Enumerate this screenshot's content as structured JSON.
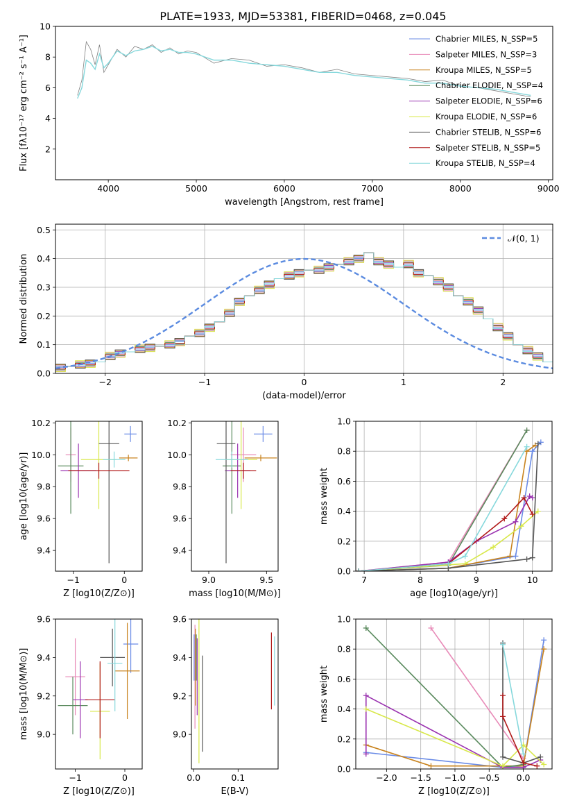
{
  "title": "PLATE=1933, MJD=53381, FIBERID=0468, z=0.045",
  "colors": {
    "series": [
      "#6a8be6",
      "#e88bb8",
      "#c8831e",
      "#5a8a5e",
      "#9a32b0",
      "#d8e84a",
      "#555555",
      "#b01818",
      "#86d8dc"
    ]
  },
  "chart_data": [
    {
      "id": "spectrum",
      "type": "line",
      "xlabel": "wavelength [Angstrom, rest frame]",
      "ylabel": "Flux [fλ10⁻¹⁷ erg cm⁻² s⁻¹ A⁻¹]",
      "xlim": [
        3400,
        9050
      ],
      "ylim": [
        0,
        10
      ],
      "xticks": [
        "4000",
        "5000",
        "6000",
        "7000",
        "8000",
        "9000"
      ],
      "yticks": [
        "2",
        "4",
        "6",
        "8",
        "10"
      ],
      "legend_position": "top-right",
      "legend": [
        "Chabrier MILES, N_SSP=5",
        "Salpeter MILES, N_SSP=3",
        "Kroupa MILES, N_SSP=5",
        "Chabrier ELODIE, N_SSP=4",
        "Salpeter ELODIE, N_SSP=6",
        "Kroupa ELODIE, N_SSP=6",
        "Chabrier STELIB, N_SSP=6",
        "Salpeter STELIB, N_SSP=5",
        "Kroupa STELIB, N_SSP=4"
      ],
      "data_spectrum": {
        "x": [
          3650,
          3700,
          3750,
          3800,
          3850,
          3900,
          3950,
          4000,
          4100,
          4200,
          4300,
          4400,
          4500,
          4600,
          4700,
          4800,
          4900,
          5000,
          5200,
          5400,
          5600,
          5800,
          6000,
          6200,
          6400,
          6600,
          6800,
          7000,
          7200,
          7400,
          7600,
          7800,
          8000,
          8200,
          8400,
          8600,
          8800
        ],
        "y": [
          5.5,
          6.5,
          9.0,
          8.5,
          7.5,
          8.8,
          7.0,
          7.5,
          8.5,
          8.0,
          8.7,
          8.5,
          8.8,
          8.3,
          8.6,
          8.2,
          8.4,
          8.3,
          7.6,
          7.9,
          7.8,
          7.4,
          7.5,
          7.3,
          7.0,
          7.2,
          6.9,
          6.8,
          6.7,
          6.6,
          6.4,
          6.5,
          6.1,
          6.0,
          5.8,
          5.6,
          5.4
        ]
      },
      "model_spectrum": {
        "x": [
          3650,
          3700,
          3750,
          3800,
          3850,
          3900,
          3950,
          4000,
          4100,
          4200,
          4300,
          4400,
          4500,
          4600,
          4700,
          4800,
          4900,
          5000,
          5200,
          5400,
          5600,
          5800,
          6000,
          6200,
          6400,
          6600,
          6800,
          7000,
          7200,
          7400,
          7600,
          7800,
          8000,
          8200,
          8400,
          8600,
          8800
        ],
        "y": [
          5.3,
          6.0,
          7.8,
          7.6,
          7.2,
          8.2,
          7.3,
          7.6,
          8.4,
          8.1,
          8.4,
          8.5,
          8.7,
          8.4,
          8.5,
          8.3,
          8.3,
          8.2,
          7.8,
          7.8,
          7.6,
          7.5,
          7.4,
          7.2,
          7.0,
          7.0,
          6.8,
          6.7,
          6.6,
          6.5,
          6.3,
          6.3,
          6.1,
          6.0,
          5.9,
          5.7,
          5.5
        ]
      }
    },
    {
      "id": "residuals",
      "type": "bar",
      "xlabel": "(data-model)/error",
      "ylabel": "Normed distribution",
      "xlim": [
        -2.5,
        2.5
      ],
      "ylim": [
        0,
        0.52
      ],
      "xticks": [
        "−2",
        "−1",
        "0",
        "1",
        "2"
      ],
      "yticks": [
        "0.0",
        "0.1",
        "0.2",
        "0.3",
        "0.4",
        "0.5"
      ],
      "grid": true,
      "legend_position": "top-right",
      "legend": [
        "𝒩(0, 1)"
      ],
      "bin_width": 0.1,
      "bin_start": -2.5,
      "hist": [
        0.02,
        0.025,
        0.03,
        0.035,
        0.04,
        0.06,
        0.07,
        0.075,
        0.085,
        0.09,
        0.095,
        0.1,
        0.11,
        0.13,
        0.14,
        0.16,
        0.18,
        0.21,
        0.25,
        0.27,
        0.29,
        0.31,
        0.33,
        0.34,
        0.35,
        0.36,
        0.36,
        0.37,
        0.38,
        0.39,
        0.4,
        0.42,
        0.39,
        0.38,
        0.37,
        0.38,
        0.35,
        0.34,
        0.32,
        0.3,
        0.27,
        0.25,
        0.22,
        0.19,
        0.16,
        0.13,
        0.1,
        0.08,
        0.06,
        0.04
      ]
    },
    {
      "id": "age_vs_Z",
      "type": "scatter",
      "xlabel": "Z [log10(Z/Z⊙)]",
      "ylabel": "age [log10(age/yr)]",
      "xlim": [
        -1.35,
        0.35
      ],
      "ylim": [
        9.27,
        10.21
      ],
      "xticks": [
        "−1",
        "0"
      ],
      "yticks": [
        "9.4",
        "9.6",
        "9.8",
        "10.0",
        "10.2"
      ],
      "points": [
        {
          "x": 0.12,
          "y": 10.13,
          "ex": 0.12,
          "ey": 0.05
        },
        {
          "x": -1.05,
          "y": 10.0,
          "ex": 0.1,
          "ey": 0.17
        },
        {
          "x": 0.08,
          "y": 9.98,
          "ex": 0.18,
          "ey": 0.02
        },
        {
          "x": -1.05,
          "y": 9.93,
          "ex": 0.25,
          "ey": 0.3
        },
        {
          "x": -0.9,
          "y": 9.9,
          "ex": 0.35,
          "ey": 0.17
        },
        {
          "x": -0.5,
          "y": 9.97,
          "ex": 0.35,
          "ey": 0.31
        },
        {
          "x": -0.3,
          "y": 10.07,
          "ex": 0.2,
          "ey": 0.75
        },
        {
          "x": -0.5,
          "y": 9.9,
          "ex": 0.6,
          "ey": 0.05
        },
        {
          "x": -0.2,
          "y": 9.97,
          "ex": 0.22,
          "ey": 0.05
        }
      ]
    },
    {
      "id": "age_vs_mass",
      "type": "scatter",
      "xlabel": "mass [log10(M/M⊙)]",
      "ylabel": "",
      "xlim": [
        8.85,
        9.6
      ],
      "ylim": [
        9.27,
        10.21
      ],
      "xticks": [
        "9.0",
        "9.5"
      ],
      "yticks": [
        "9.4",
        "9.6",
        "9.8",
        "10.0",
        "10.2"
      ]
    },
    {
      "id": "weight_vs_age",
      "type": "line",
      "xlabel": "age [log10(age/yr)]",
      "ylabel": "mass weight",
      "xlim": [
        6.85,
        10.35
      ],
      "ylim": [
        0,
        1.0
      ],
      "xticks": [
        "7",
        "8",
        "9",
        "10"
      ],
      "yticks": [
        "0.0",
        "0.2",
        "0.4",
        "0.6",
        "0.8",
        "1.0"
      ],
      "grid": true,
      "series": [
        {
          "x": [
            6.9,
            8.5,
            9.7,
            10.0,
            10.15
          ],
          "y": [
            0.0,
            0.02,
            0.1,
            0.8,
            0.86
          ]
        },
        {
          "x": [
            6.9,
            8.5,
            9.9
          ],
          "y": [
            0.0,
            0.06,
            0.94
          ]
        },
        {
          "x": [
            6.9,
            8.5,
            9.6,
            9.9,
            10.05
          ],
          "y": [
            0.0,
            0.02,
            0.1,
            0.8,
            0.84
          ]
        },
        {
          "x": [
            6.9,
            8.5,
            9.9
          ],
          "y": [
            0.0,
            0.04,
            0.94
          ]
        },
        {
          "x": [
            6.9,
            8.5,
            9.0,
            9.7,
            9.95,
            10.0
          ],
          "y": [
            0.0,
            0.06,
            0.2,
            0.33,
            0.5,
            0.49
          ]
        },
        {
          "x": [
            6.9,
            8.8,
            9.3,
            9.8,
            10.1
          ],
          "y": [
            0.0,
            0.05,
            0.16,
            0.3,
            0.4
          ]
        },
        {
          "x": [
            6.9,
            8.5,
            9.9,
            10.0,
            10.1
          ],
          "y": [
            0.0,
            0.02,
            0.08,
            0.09,
            0.85
          ]
        },
        {
          "x": [
            6.9,
            8.5,
            9.5,
            9.85,
            10.0
          ],
          "y": [
            0.0,
            0.05,
            0.35,
            0.49,
            0.38
          ]
        },
        {
          "x": [
            6.9,
            8.5,
            8.8,
            9.9
          ],
          "y": [
            0.0,
            0.05,
            0.1,
            0.83
          ]
        }
      ]
    },
    {
      "id": "mass_vs_Z",
      "type": "scatter",
      "xlabel": "Z [log10(Z/Z⊙)]",
      "ylabel": "mass [log10(M/M⊙)]",
      "xlim": [
        -1.4,
        0.35
      ],
      "ylim": [
        8.82,
        9.6
      ],
      "xticks": [
        "−1",
        "0"
      ],
      "yticks": [
        "9.0",
        "9.2",
        "9.4",
        "9.6"
      ]
    },
    {
      "id": "mass_vs_EBV",
      "type": "scatter",
      "xlabel": "E(B-V)",
      "ylabel": "",
      "xlim": [
        -0.005,
        0.19
      ],
      "ylim": [
        8.82,
        9.6
      ],
      "xticks": [
        "0.0",
        "0.1"
      ],
      "yticks": [
        "9.0",
        "9.2",
        "9.4",
        "9.6"
      ],
      "points": [
        {
          "x": 0.001,
          "y": 9.4,
          "ey": 0.12
        },
        {
          "x": 0.003,
          "y": 9.3,
          "ey": 0.27
        },
        {
          "x": 0.004,
          "y": 9.35,
          "ey": 0.2
        },
        {
          "x": 0.006,
          "y": 9.4,
          "ey": 0.12
        },
        {
          "x": 0.008,
          "y": 9.3,
          "ey": 0.2
        },
        {
          "x": 0.012,
          "y": 9.25,
          "ey": 0.4
        },
        {
          "x": 0.02,
          "y": 9.16,
          "ey": 0.25
        },
        {
          "x": 0.175,
          "y": 9.33,
          "ey": 0.2
        },
        {
          "x": 0.182,
          "y": 9.33,
          "ey": 0.18
        }
      ]
    },
    {
      "id": "weight_vs_Z",
      "type": "line",
      "xlabel": "Z [log10(Z/Z⊙)]",
      "ylabel": "mass weight",
      "xlim": [
        -2.45,
        0.42
      ],
      "ylim": [
        0,
        1.0
      ],
      "xticks": [
        "−2.0",
        "−1.5",
        "−1.0",
        "−0.5",
        "0.0"
      ],
      "yticks": [
        "0.0",
        "0.2",
        "0.4",
        "0.6",
        "0.8",
        "1.0"
      ],
      "grid": true,
      "series": [
        {
          "x": [
            -2.3,
            -0.3,
            0.0,
            0.3
          ],
          "y": [
            0.11,
            0.01,
            0.02,
            0.86
          ]
        },
        {
          "x": [
            -1.35,
            0.0
          ],
          "y": [
            0.94,
            0.07
          ]
        },
        {
          "x": [
            -2.3,
            -1.35,
            0.0,
            0.3
          ],
          "y": [
            0.16,
            0.02,
            0.02,
            0.8
          ]
        },
        {
          "x": [
            -2.3,
            -0.3,
            0.0
          ],
          "y": [
            0.94,
            0.01,
            0.03
          ]
        },
        {
          "x": [
            -2.3,
            -2.3,
            -0.3,
            0.0,
            0.25
          ],
          "y": [
            0.1,
            0.49,
            0.01,
            0.01,
            0.06
          ]
        },
        {
          "x": [
            -2.3,
            -0.3,
            0.0,
            0.3
          ],
          "y": [
            0.4,
            0.02,
            0.16,
            0.03
          ]
        },
        {
          "x": [
            -0.3,
            -0.3,
            0.0,
            0.25
          ],
          "y": [
            0.84,
            0.08,
            0.04,
            0.08
          ]
        },
        {
          "x": [
            -0.3,
            -0.3,
            0.0,
            0.2
          ],
          "y": [
            0.49,
            0.35,
            0.04,
            0.02
          ]
        },
        {
          "x": [
            -0.3,
            0.0
          ],
          "y": [
            0.83,
            0.1
          ]
        }
      ]
    }
  ]
}
